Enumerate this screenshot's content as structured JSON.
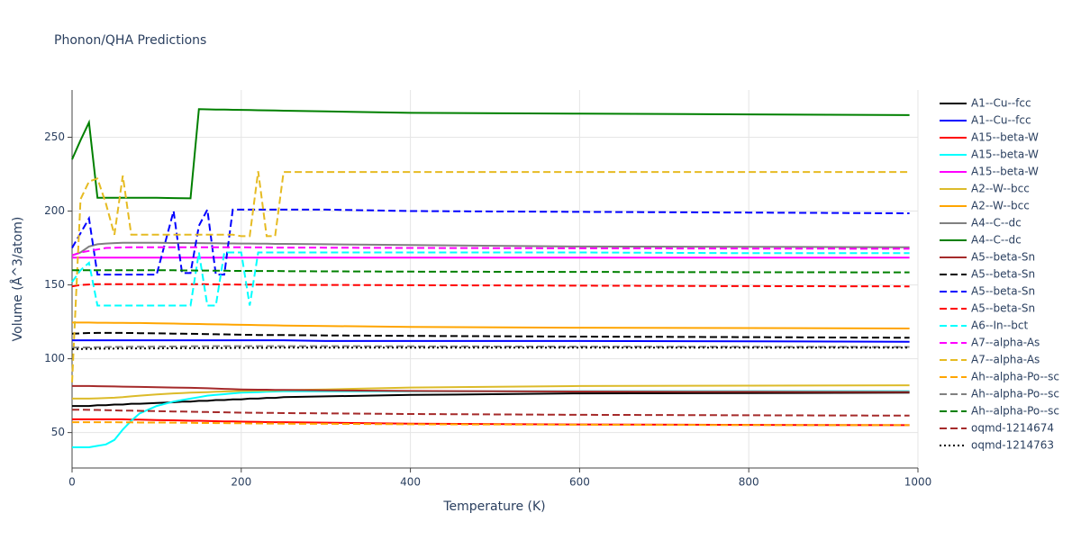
{
  "chart_data": {
    "type": "line",
    "title": "Phonon/QHA Predictions",
    "x_label": "Temperature (K)",
    "y_label": "Volume (Å^3/atom)",
    "xlim": [
      0,
      1000
    ],
    "ylim": [
      26,
      282
    ],
    "xticks": [
      0,
      200,
      400,
      600,
      800,
      1000
    ],
    "yticks": [
      50,
      100,
      150,
      200,
      250
    ],
    "grid": true,
    "legend": "right",
    "x": [
      0,
      10,
      20,
      30,
      40,
      50,
      60,
      70,
      80,
      100,
      120,
      130,
      140,
      150,
      160,
      170,
      180,
      190,
      200,
      210,
      220,
      230,
      240,
      250,
      300,
      400,
      600,
      800,
      990
    ],
    "series": [
      {
        "name": "A1--Cu--fcc",
        "color": "#000000",
        "dash": "solid",
        "values": [
          68,
          68,
          68,
          68.5,
          68.5,
          69,
          69,
          69.5,
          69.5,
          70,
          70.5,
          71,
          71,
          71.5,
          71.5,
          72,
          72,
          72.5,
          72.5,
          73,
          73,
          73.5,
          73.5,
          74,
          74.5,
          75.5,
          76.5,
          76.8,
          77
        ]
      },
      {
        "name": "A1--Cu--fcc",
        "color": "#0000ff",
        "dash": "solid",
        "values": [
          112.5,
          112.5,
          112.5,
          112.5,
          112.5,
          112.5,
          112.5,
          112.5,
          112.5,
          112.5,
          112.5,
          112.5,
          112.5,
          112.5,
          112.5,
          112.5,
          112.5,
          112.5,
          112.5,
          112.5,
          112.5,
          112.5,
          112.5,
          112.5,
          112,
          112,
          112,
          111.8,
          111.5
        ]
      },
      {
        "name": "A15--beta-W",
        "color": "#ff0000",
        "dash": "solid",
        "values": [
          59,
          59,
          59,
          59,
          59,
          59,
          59,
          58.8,
          58.8,
          58.5,
          58.3,
          58.2,
          58,
          58,
          57.8,
          57.7,
          57.6,
          57.5,
          57.4,
          57.3,
          57.2,
          57.1,
          57,
          57,
          56.7,
          56,
          55.5,
          55.2,
          55
        ]
      },
      {
        "name": "A15--beta-W",
        "color": "#00ffff",
        "dash": "solid",
        "values": [
          40,
          40,
          40,
          41,
          42,
          45,
          52,
          58,
          63,
          68,
          71,
          72,
          73,
          74,
          75,
          75.5,
          76,
          76.5,
          77,
          77.2,
          77.4,
          77.6,
          77.8,
          78,
          78,
          78,
          78,
          78,
          78
        ]
      },
      {
        "name": "A15--beta-W",
        "color": "#ff00ff",
        "dash": "solid",
        "values": [
          168.5,
          168.5,
          168.5,
          168.5,
          168.5,
          168.5,
          168.5,
          168.5,
          168.5,
          168.5,
          168.5,
          168.5,
          168.5,
          168.5,
          168.5,
          168.5,
          168.5,
          168.5,
          168.5,
          168.5,
          168.5,
          168.5,
          168.5,
          168.5,
          168.5,
          168.5,
          168.5,
          168.5,
          168.5
        ]
      },
      {
        "name": "A2--W--bcc",
        "color": "#dcbb2a",
        "dash": "solid",
        "values": [
          73,
          73,
          73,
          73.2,
          73.4,
          73.6,
          74,
          74.5,
          75,
          75.8,
          76.5,
          76.8,
          77,
          77.2,
          77.4,
          77.6,
          77.8,
          78,
          78.2,
          78.3,
          78.4,
          78.5,
          78.6,
          78.7,
          79.2,
          80.5,
          81.5,
          81.8,
          82
        ]
      },
      {
        "name": "A2--W--bcc",
        "color": "#ffa500",
        "dash": "solid",
        "values": [
          124.5,
          124.5,
          124.5,
          124.4,
          124.4,
          124.3,
          124.3,
          124.2,
          124.2,
          124,
          123.8,
          123.7,
          123.6,
          123.5,
          123.4,
          123.3,
          123.2,
          123.1,
          123,
          122.9,
          122.8,
          122.7,
          122.6,
          122.5,
          122.2,
          121.5,
          121,
          120.8,
          120.5
        ]
      },
      {
        "name": "A4--C--dc",
        "color": "#808080",
        "dash": "solid",
        "values": [
          170,
          172,
          176,
          177.5,
          178,
          178.3,
          178.5,
          178.5,
          178.5,
          178.5,
          178.4,
          178.4,
          178.3,
          178.3,
          178.2,
          178.2,
          178.1,
          178.1,
          178,
          178,
          177.9,
          177.9,
          177.8,
          177.8,
          177.5,
          177,
          176,
          175.8,
          175.5
        ]
      },
      {
        "name": "A4--C--dc",
        "color": "#008000",
        "dash": "solid",
        "values": [
          235,
          248,
          260,
          209,
          209,
          209,
          209,
          209,
          209,
          209,
          208.8,
          208.7,
          208.6,
          269,
          268.9,
          268.8,
          268.7,
          268.6,
          268.5,
          268.4,
          268.3,
          268.2,
          268.1,
          268,
          267.5,
          266.5,
          266,
          265.5,
          265
        ]
      },
      {
        "name": "A5--beta-Sn",
        "color": "#a52a2a",
        "dash": "solid",
        "values": [
          81.5,
          81.5,
          81.5,
          81.4,
          81.3,
          81.2,
          81.1,
          81,
          80.9,
          80.7,
          80.5,
          80.4,
          80.3,
          80.2,
          80,
          79.8,
          79.6,
          79.4,
          79.2,
          79.1,
          79,
          79,
          78.9,
          78.9,
          78.6,
          78.2,
          77.8,
          77.6,
          77.5
        ]
      },
      {
        "name": "A5--beta-Sn",
        "color": "#000000",
        "dash": "dash",
        "values": [
          117,
          117.2,
          117.4,
          117.5,
          117.5,
          117.5,
          117.5,
          117.4,
          117.3,
          117.2,
          117,
          117,
          116.9,
          116.8,
          116.7,
          116.6,
          116.5,
          116.4,
          116.3,
          116.2,
          116.1,
          116,
          116,
          116,
          115.8,
          115.5,
          115,
          114.6,
          114.2
        ]
      },
      {
        "name": "A5--beta-Sn",
        "color": "#0000ff",
        "dash": "dash",
        "values": [
          175,
          185,
          195,
          157,
          157,
          157,
          157,
          157,
          157,
          157,
          200,
          158,
          158,
          190,
          201,
          157,
          157,
          201,
          201,
          201,
          201,
          201,
          201,
          201,
          201,
          200,
          199.5,
          199,
          198.5
        ]
      },
      {
        "name": "A5--beta-Sn",
        "color": "#ff0000",
        "dash": "dash",
        "values": [
          149,
          150,
          150.3,
          150.5,
          150.5,
          150.5,
          150.5,
          150.5,
          150.5,
          150.5,
          150.5,
          150.5,
          150.5,
          150.5,
          150.4,
          150.4,
          150.3,
          150.3,
          150.2,
          150.2,
          150.2,
          150.1,
          150.1,
          150,
          150,
          149.8,
          149.5,
          149.2,
          149
        ]
      },
      {
        "name": "A6--In--bct",
        "color": "#00ffff",
        "dash": "dash",
        "values": [
          152,
          160,
          165,
          136,
          136,
          136,
          136,
          136,
          136,
          136,
          136,
          136,
          136,
          172,
          136,
          136,
          172,
          172,
          172,
          136,
          172,
          172,
          172,
          172,
          172,
          172,
          172,
          171.5,
          171.5
        ]
      },
      {
        "name": "A7--alpha-As",
        "color": "#ff00ff",
        "dash": "dash",
        "values": [
          170,
          172,
          173,
          174,
          175,
          175.2,
          175.4,
          175.5,
          175.5,
          175.5,
          175.5,
          175.5,
          175.5,
          175.5,
          175.5,
          175.5,
          175.5,
          175.5,
          175.5,
          175.4,
          175.4,
          175.4,
          175.3,
          175.3,
          175.2,
          175,
          174.8,
          174.6,
          174.5
        ]
      },
      {
        "name": "A7--alpha-As",
        "color": "#e6bb22",
        "dash": "dash",
        "values": [
          84,
          208,
          220,
          222,
          205,
          184,
          224,
          184,
          184,
          184,
          184,
          184,
          184,
          184,
          184,
          184,
          184,
          184,
          183,
          183,
          227,
          183,
          183,
          226.5,
          226.5,
          226.5,
          226.5,
          226.5,
          226.5
        ]
      },
      {
        "name": "Ah--alpha-Po--sc",
        "color": "#ffa500",
        "dash": "dash",
        "values": [
          57,
          57,
          57,
          57,
          57,
          57,
          56.9,
          56.9,
          56.8,
          56.8,
          56.7,
          56.6,
          56.6,
          56.5,
          56.5,
          56.4,
          56.4,
          56.3,
          56.3,
          56.2,
          56.2,
          56.1,
          56.1,
          56,
          55.9,
          55.6,
          55.3,
          55.1,
          55
        ]
      },
      {
        "name": "Ah--alpha-Po--sc",
        "color": "#808080",
        "dash": "dash",
        "values": [
          107.5,
          107.6,
          107.7,
          107.8,
          107.9,
          108,
          108,
          108.1,
          108.1,
          108.2,
          108.3,
          108.3,
          108.4,
          108.4,
          108.4,
          108.5,
          108.5,
          108.5,
          108.5,
          108.5,
          108.5,
          108.5,
          108.5,
          108.5,
          108.5,
          108.4,
          108.2,
          108.1,
          108
        ]
      },
      {
        "name": "Ah--alpha-Po--sc",
        "color": "#008000",
        "dash": "dash",
        "values": [
          160,
          160,
          160,
          160,
          160,
          160,
          160,
          160,
          160,
          160,
          159.9,
          159.8,
          159.8,
          159.7,
          159.7,
          159.6,
          159.6,
          159.5,
          159.5,
          159.5,
          159.4,
          159.4,
          159.4,
          159.3,
          159.2,
          159,
          158.8,
          158.6,
          158.5
        ]
      },
      {
        "name": "oqmd-1214674",
        "color": "#a52a2a",
        "dash": "dash",
        "values": [
          65.5,
          65.5,
          65.4,
          65.3,
          65.2,
          65,
          64.9,
          64.8,
          64.7,
          64.5,
          64.3,
          64.2,
          64.1,
          64,
          63.9,
          63.8,
          63.7,
          63.6,
          63.5,
          63.4,
          63.4,
          63.3,
          63.3,
          63.2,
          63,
          62.6,
          62,
          61.7,
          61.5
        ]
      },
      {
        "name": "oqmd-1214763",
        "color": "#000000",
        "dash": "dot",
        "values": [
          106.5,
          106.6,
          106.7,
          106.8,
          106.8,
          106.9,
          106.9,
          107,
          107,
          107,
          107.1,
          107.1,
          107.2,
          107.2,
          107.2,
          107.3,
          107.3,
          107.3,
          107.4,
          107.4,
          107.4,
          107.4,
          107.5,
          107.5,
          107.5,
          107.5,
          107.5,
          107.5,
          107.5
        ]
      }
    ]
  }
}
